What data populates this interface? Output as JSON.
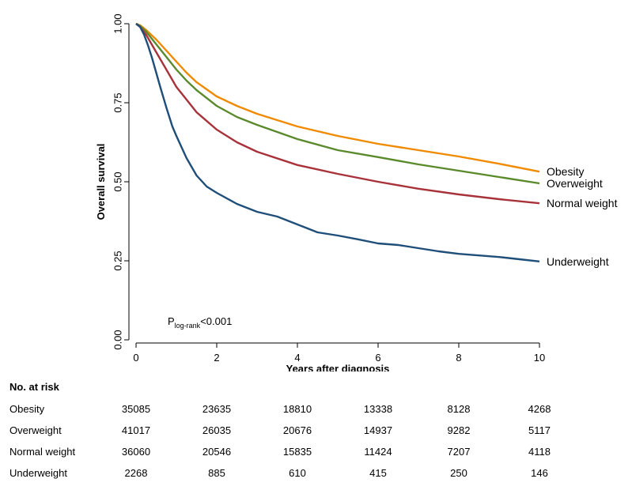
{
  "chart_data": {
    "type": "line",
    "xlabel": "Years after diagnosis",
    "ylabel": "Overall survival",
    "xlim": [
      0,
      10
    ],
    "ylim": [
      0,
      1
    ],
    "xticks": [
      "0",
      "2",
      "4",
      "6",
      "8",
      "10"
    ],
    "yticks": [
      "0.00",
      "0.25",
      "0.50",
      "0.75",
      "1.00"
    ],
    "annotation": {
      "main": "P",
      "sub": "log-rank",
      "rest": "<0.001"
    },
    "legend_placement": "right end of curves",
    "series": [
      {
        "name": "Obesity",
        "color": "#f08a00",
        "x": [
          0,
          0.1,
          0.25,
          0.5,
          0.75,
          1,
          1.25,
          1.5,
          2,
          2.5,
          3,
          4,
          5,
          6,
          7,
          8,
          9,
          10
        ],
        "y": [
          1.0,
          0.995,
          0.98,
          0.95,
          0.915,
          0.88,
          0.845,
          0.815,
          0.77,
          0.74,
          0.715,
          0.675,
          0.645,
          0.62,
          0.6,
          0.58,
          0.557,
          0.532
        ]
      },
      {
        "name": "Overweight",
        "color": "#5a8a2c",
        "x": [
          0,
          0.1,
          0.25,
          0.5,
          0.75,
          1,
          1.25,
          1.5,
          2,
          2.5,
          3,
          4,
          5,
          6,
          7,
          8,
          9,
          10
        ],
        "y": [
          1.0,
          0.993,
          0.975,
          0.935,
          0.895,
          0.855,
          0.82,
          0.79,
          0.74,
          0.705,
          0.68,
          0.635,
          0.6,
          0.578,
          0.555,
          0.535,
          0.515,
          0.495
        ]
      },
      {
        "name": "Normal weight",
        "color": "#a8323a",
        "x": [
          0,
          0.1,
          0.25,
          0.5,
          0.75,
          1,
          1.25,
          1.5,
          2,
          2.5,
          3,
          4,
          5,
          6,
          7,
          8,
          9,
          10
        ],
        "y": [
          1.0,
          0.99,
          0.965,
          0.91,
          0.855,
          0.8,
          0.76,
          0.72,
          0.665,
          0.625,
          0.595,
          0.553,
          0.525,
          0.5,
          0.478,
          0.46,
          0.445,
          0.432
        ]
      },
      {
        "name": "Underweight",
        "color": "#1f4e79",
        "x": [
          0,
          0.1,
          0.2,
          0.3,
          0.4,
          0.5,
          0.6,
          0.75,
          0.9,
          1,
          1.25,
          1.5,
          1.75,
          2,
          2.5,
          3,
          3.5,
          4,
          4.5,
          5,
          5.5,
          6,
          6.5,
          7,
          7.5,
          8,
          8.5,
          9,
          9.5,
          10
        ],
        "y": [
          1.0,
          0.99,
          0.965,
          0.93,
          0.89,
          0.845,
          0.8,
          0.735,
          0.675,
          0.645,
          0.575,
          0.52,
          0.485,
          0.465,
          0.43,
          0.405,
          0.39,
          0.365,
          0.34,
          0.33,
          0.318,
          0.305,
          0.3,
          0.29,
          0.28,
          0.272,
          0.267,
          0.262,
          0.255,
          0.248
        ]
      }
    ]
  },
  "risk_table": {
    "title": "No. at risk",
    "rows": [
      {
        "label": "Obesity",
        "values": [
          "35085",
          "23635",
          "18810",
          "13338",
          "8128",
          "4268"
        ]
      },
      {
        "label": "Overweight",
        "values": [
          "41017",
          "26035",
          "20676",
          "14937",
          "9282",
          "5117"
        ]
      },
      {
        "label": "Normal weight",
        "values": [
          "36060",
          "20546",
          "15835",
          "11424",
          "7207",
          "4118"
        ]
      },
      {
        "label": "Underweight",
        "values": [
          "2268",
          "885",
          "610",
          "415",
          "250",
          "146"
        ]
      }
    ]
  }
}
